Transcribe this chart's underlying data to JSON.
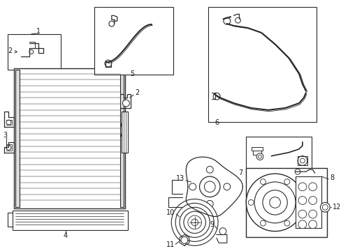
{
  "bg_color": "#ffffff",
  "line_color": "#2a2a2a",
  "label_color": "#1a1a1a",
  "fig_width": 4.89,
  "fig_height": 3.6,
  "dpi": 100
}
